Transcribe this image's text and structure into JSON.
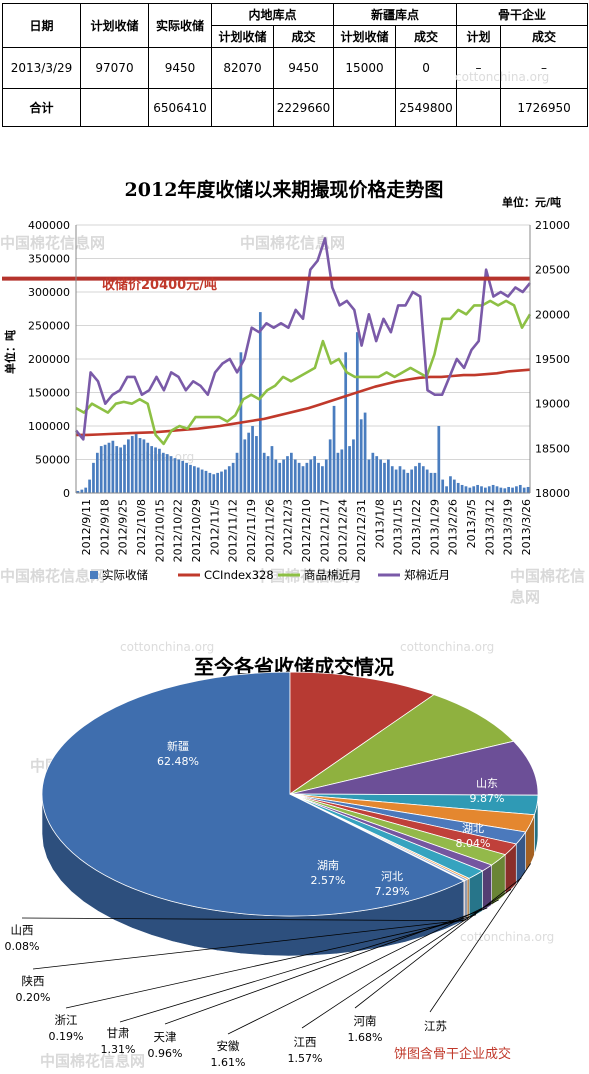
{
  "table": {
    "headers": {
      "date": "日期",
      "plan": "计划收储",
      "actual": "实际收储",
      "inland": "内地库点",
      "xinjiang": "新疆库点",
      "backbone": "骨干企业",
      "sub_plan_inland": "计划收储",
      "sub_deal_inland": "成交",
      "sub_plan_xj": "计划收储",
      "sub_deal_xj": "成交",
      "sub_plan_bb": "计划",
      "sub_deal_bb": "成交"
    },
    "row": {
      "date": "2013/3/29",
      "plan": "97070",
      "actual": "9450",
      "inland_plan": "82070",
      "inland_deal": "9450",
      "xj_plan": "15000",
      "xj_deal": "0",
      "bb_plan": "–",
      "bb_deal": "–"
    },
    "total": {
      "label": "合计",
      "actual": "6506410",
      "inland_deal": "2229660",
      "xj_deal": "2549800",
      "bb_deal": "1726950"
    }
  },
  "watermarks": {
    "cn": "中国棉花信息网",
    "en": "cottonchina.org"
  },
  "chart_data": [
    {
      "type": "bar+line",
      "title": "2012年度收储以来期撮现价格走势图",
      "unit_label": "单位：元/吨",
      "ylabel_left": "单位：吨",
      "annotation": "收储价20400元/吨",
      "ylim_left": [
        0,
        400000
      ],
      "ylim_right": [
        18000,
        21000
      ],
      "left_ticks": [
        "0",
        "50000",
        "100000",
        "150000",
        "200000",
        "250000",
        "300000",
        "350000",
        "400000"
      ],
      "right_ticks": [
        "18000",
        "18500",
        "19000",
        "19500",
        "20000",
        "20500",
        "21000"
      ],
      "x_tick_labels": [
        "2012/9/11",
        "2012/9/18",
        "2012/9/25",
        "2012/10/8",
        "2012/10/15",
        "2012/10/22",
        "2012/10/29",
        "2012/11/5",
        "2012/11/12",
        "2012/11/19",
        "2012/11/26",
        "2012/12/3",
        "2012/12/10",
        "2012/12/17",
        "2012/12/24",
        "2012/12/31",
        "2013/1/8",
        "2013/1/15",
        "2013/1/22",
        "2013/1/29",
        "2013/2/26",
        "2013/3/5",
        "2013/3/12",
        "2013/3/19",
        "2013/3/26"
      ],
      "reference_line": 20400,
      "series": [
        {
          "name": "实际收储",
          "axis": "left",
          "color": "#4a7dbf",
          "kind": "bar",
          "values": [
            3000,
            5000,
            8000,
            20000,
            45000,
            60000,
            70000,
            72000,
            75000,
            78000,
            70000,
            68000,
            72000,
            80000,
            85000,
            88000,
            82000,
            80000,
            75000,
            70000,
            68000,
            66000,
            60000,
            58000,
            55000,
            52000,
            50000,
            48000,
            45000,
            42000,
            40000,
            38000,
            35000,
            33000,
            30000,
            28000,
            30000,
            32000,
            35000,
            40000,
            45000,
            60000,
            210000,
            80000,
            90000,
            100000,
            85000,
            270000,
            60000,
            55000,
            70000,
            50000,
            45000,
            50000,
            55000,
            60000,
            50000,
            45000,
            40000,
            45000,
            50000,
            55000,
            45000,
            40000,
            50000,
            80000,
            130000,
            60000,
            65000,
            210000,
            70000,
            80000,
            240000,
            110000,
            120000,
            50000,
            60000,
            55000,
            50000,
            45000,
            50000,
            40000,
            35000,
            40000,
            35000,
            30000,
            35000,
            40000,
            45000,
            40000,
            35000,
            30000,
            30000,
            100000,
            20000,
            10000,
            25000,
            20000,
            15000,
            12000,
            10000,
            8000,
            10000,
            12000,
            10000,
            8000,
            10000,
            12000,
            10000,
            8000,
            7000,
            9000,
            8000,
            10000,
            12000,
            8000,
            9000
          ]
        },
        {
          "name": "CCIndex328",
          "axis": "right",
          "color": "#c0392b",
          "kind": "line",
          "values": [
            18650,
            18650,
            18655,
            18660,
            18665,
            18670,
            18675,
            18680,
            18690,
            18700,
            18710,
            18720,
            18735,
            18750,
            18770,
            18790,
            18810,
            18830,
            18860,
            18890,
            18920,
            18950,
            18990,
            19030,
            19070,
            19110,
            19150,
            19190,
            19220,
            19250,
            19270,
            19290,
            19300,
            19300,
            19310,
            19320,
            19320,
            19330,
            19340,
            19360,
            19370,
            19380
          ]
        },
        {
          "name": "商品棉近月",
          "axis": "right",
          "color": "#8dc044",
          "kind": "line",
          "values": [
            18950,
            18900,
            19000,
            18950,
            18900,
            19000,
            19020,
            19000,
            19050,
            19000,
            18650,
            18550,
            18700,
            18750,
            18720,
            18850,
            18850,
            18850,
            18850,
            18800,
            18870,
            19050,
            19100,
            19050,
            19150,
            19200,
            19300,
            19250,
            19300,
            19350,
            19400,
            19700,
            19450,
            19500,
            19350,
            19300,
            19300,
            19300,
            19300,
            19350,
            19300,
            19350,
            19400,
            19350,
            19300,
            19550,
            19950,
            19950,
            20050,
            20000,
            20100,
            20100,
            20150,
            20100,
            20150,
            20100,
            19850,
            20000
          ]
        },
        {
          "name": "郑棉近月",
          "axis": "right",
          "color": "#7a5aa8",
          "kind": "line",
          "values": [
            18700,
            18600,
            19350,
            19250,
            19000,
            19100,
            19150,
            19300,
            19300,
            19100,
            19150,
            19300,
            19150,
            19350,
            19300,
            19150,
            19250,
            19200,
            19100,
            19350,
            19450,
            19500,
            19350,
            19500,
            19850,
            19800,
            19900,
            19850,
            19900,
            19850,
            20050,
            19950,
            20500,
            20600,
            20850,
            20300,
            20100,
            20150,
            20050,
            19650,
            20000,
            19700,
            19950,
            19800,
            20100,
            20100,
            20250,
            20200,
            19150,
            19100,
            19100,
            19300,
            19500,
            19400,
            19600,
            19700,
            20500,
            20200,
            20250,
            20200,
            20300,
            20250,
            20350
          ]
        }
      ]
    },
    {
      "type": "pie",
      "title": "至今各省收储成交情况",
      "footnote": "饼图含骨干企业成交",
      "slices": [
        {
          "label": "新疆",
          "pct": "62.48%",
          "value": 62.48,
          "color": "#3f6eae",
          "show_inside": true
        },
        {
          "label": "山东",
          "pct": "9.87%",
          "value": 9.87,
          "color": "#b73a33",
          "show_inside": true
        },
        {
          "label": "湖北",
          "pct": "8.04%",
          "value": 8.04,
          "color": "#8fb13f",
          "show_inside": true
        },
        {
          "label": "河北",
          "pct": "7.29%",
          "value": 7.29,
          "color": "#6c4f97",
          "show_inside": true
        },
        {
          "label": "湖南",
          "pct": "2.57%",
          "value": 2.57,
          "color": "#2f9ab5",
          "show_inside": true
        },
        {
          "label": "江苏",
          "pct": "",
          "value": 2.32,
          "color": "#e4872f",
          "show_inside": false
        },
        {
          "label": "河南",
          "pct": "1.68%",
          "value": 1.68,
          "color": "#4b79bc",
          "show_inside": false
        },
        {
          "label": "江西",
          "pct": "1.57%",
          "value": 1.57,
          "color": "#c0403a",
          "show_inside": false
        },
        {
          "label": "安徽",
          "pct": "1.61%",
          "value": 1.61,
          "color": "#93b94a",
          "show_inside": false
        },
        {
          "label": "天津",
          "pct": "0.96%",
          "value": 0.96,
          "color": "#7556a0",
          "show_inside": false
        },
        {
          "label": "甘肃",
          "pct": "1.31%",
          "value": 1.31,
          "color": "#36a3bf",
          "show_inside": false
        },
        {
          "label": "浙江",
          "pct": "0.19%",
          "value": 0.19,
          "color": "#ec9a45",
          "show_inside": false
        },
        {
          "label": "陕西",
          "pct": "0.20%",
          "value": 0.2,
          "color": "#8ea8d2",
          "show_inside": false
        },
        {
          "label": "山西",
          "pct": "0.08%",
          "value": 0.08,
          "color": "#d48a86",
          "show_inside": false
        }
      ]
    }
  ]
}
